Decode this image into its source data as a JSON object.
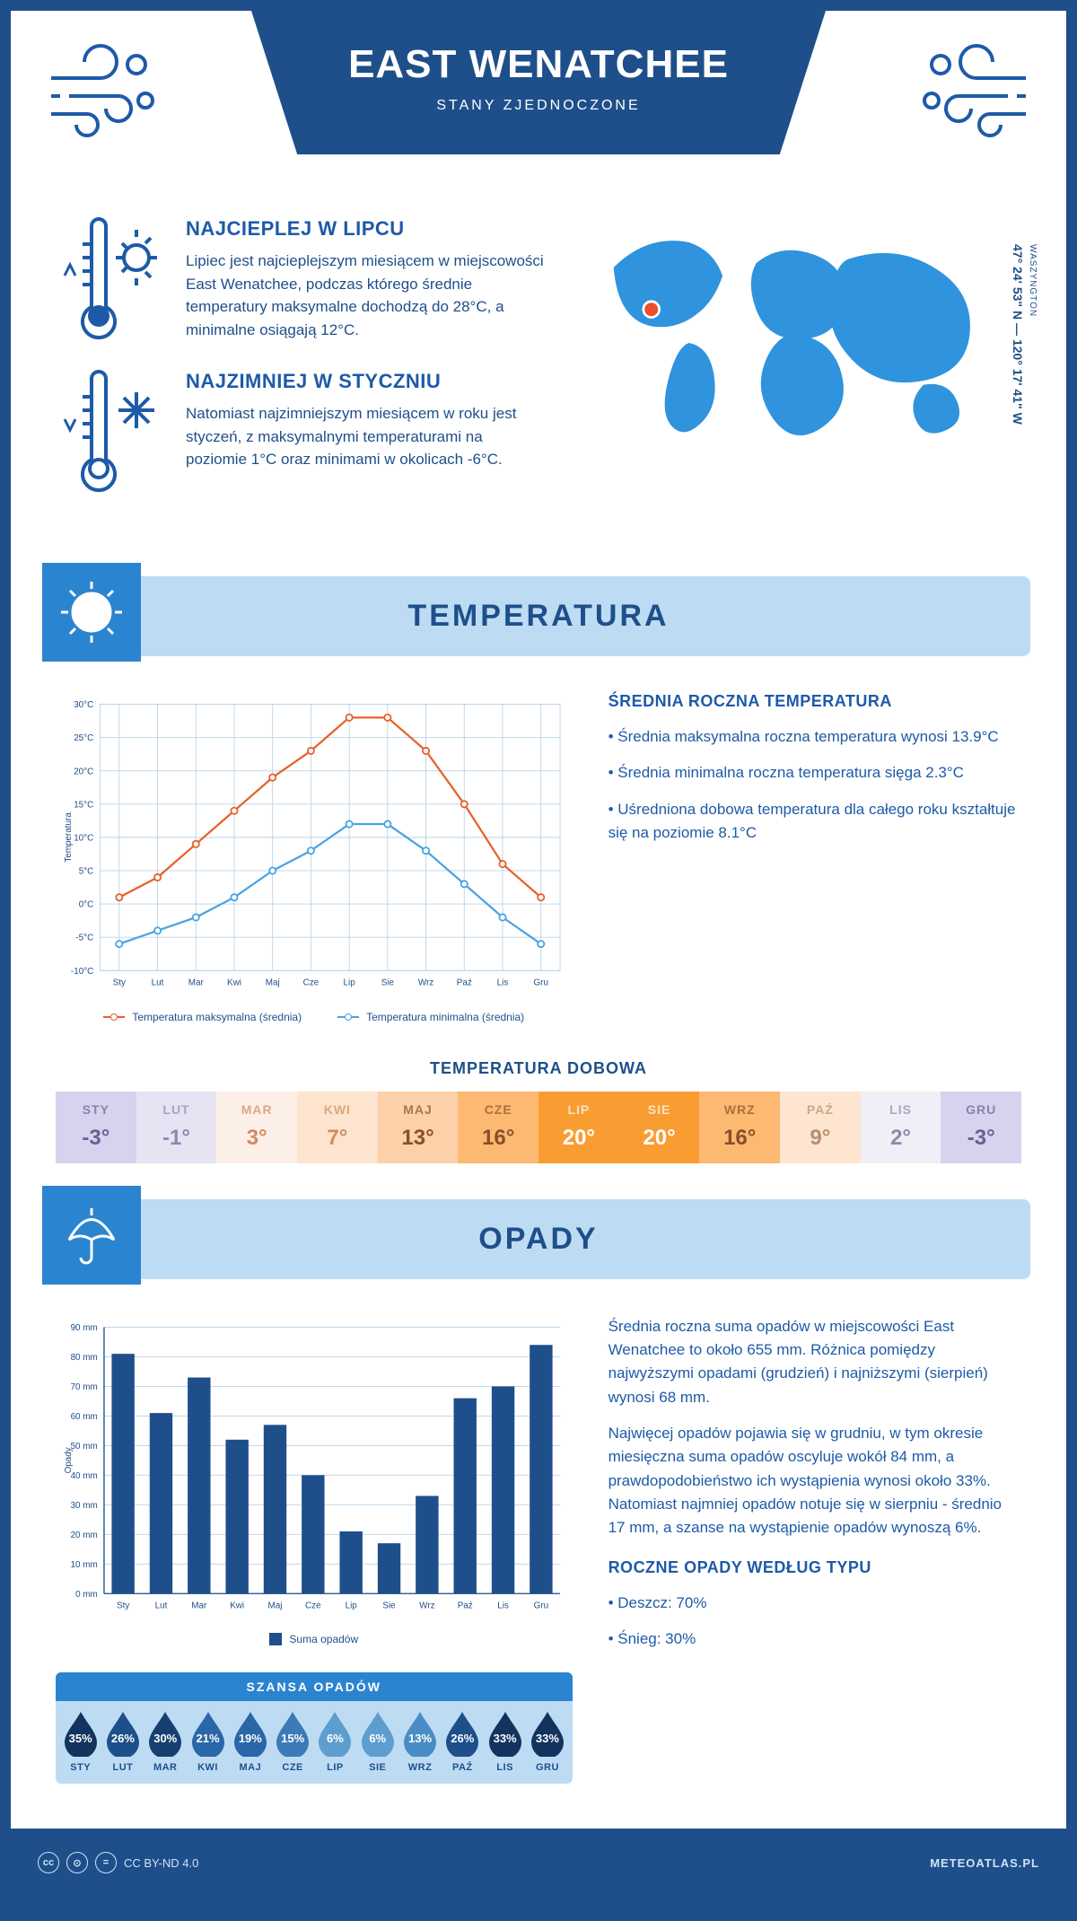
{
  "header": {
    "title": "EAST WENATCHEE",
    "subtitle": "STANY ZJEDNOCZONE",
    "coords": "47° 24' 53\" N — 120° 17' 41\" W",
    "region_label": "WASZYNGTON"
  },
  "facts": {
    "warm": {
      "title": "NAJCIEPLEJ W LIPCU",
      "body": "Lipiec jest najcieplejszym miesiącem w miejscowości East Wenatchee, podczas którego średnie temperatury maksymalne dochodzą do 28°C, a minimalne osiągają 12°C."
    },
    "cold": {
      "title": "NAJZIMNIEJ W STYCZNIU",
      "body": "Natomiast najzimniejszym miesiącem w roku jest styczeń, z maksymalnymi temperaturami na poziomie 1°C oraz minimami w okolicach -6°C."
    }
  },
  "months_short": [
    "Sty",
    "Lut",
    "Mar",
    "Kwi",
    "Maj",
    "Cze",
    "Lip",
    "Sie",
    "Wrz",
    "Paź",
    "Lis",
    "Gru"
  ],
  "months_upper": [
    "STY",
    "LUT",
    "MAR",
    "KWI",
    "MAJ",
    "CZE",
    "LIP",
    "SIE",
    "WRZ",
    "PAŹ",
    "LIS",
    "GRU"
  ],
  "temperature_section": {
    "heading": "TEMPERATURA",
    "chart": {
      "y_label": "Temperatura",
      "ylim": [
        -10,
        30
      ],
      "ytick_step": 5,
      "ytick_suffix": "°C",
      "max_series": {
        "label": "Temperatura maksymalna (średnia)",
        "color": "#e9602b",
        "values": [
          1,
          4,
          9,
          14,
          19,
          23,
          28,
          28,
          23,
          15,
          6,
          1
        ]
      },
      "min_series": {
        "label": "Temperatura minimalna (średnia)",
        "color": "#4aa3e0",
        "values": [
          -6,
          -4,
          -2,
          1,
          5,
          8,
          12,
          12,
          8,
          3,
          -2,
          -6
        ]
      },
      "grid_color": "#b8d4ea"
    },
    "annual": {
      "title": "ŚREDNIA ROCZNA TEMPERATURA",
      "bullets": [
        "Średnia maksymalna roczna temperatura wynosi 13.9°C",
        "Średnia minimalna roczna temperatura sięga 2.3°C",
        "Uśredniona dobowa temperatura dla całego roku kształtuje się na poziomie 8.1°C"
      ]
    },
    "daily": {
      "title": "TEMPERATURA DOBOWA",
      "values": [
        "-3°",
        "-1°",
        "3°",
        "7°",
        "13°",
        "16°",
        "20°",
        "20°",
        "16°",
        "9°",
        "2°",
        "-3°"
      ],
      "bg_colors": [
        "#d7d2ee",
        "#e7e3f3",
        "#fcefe7",
        "#fde4cf",
        "#fcd0a8",
        "#fdb871",
        "#f99d32",
        "#f99d32",
        "#fdb971",
        "#fde5d0",
        "#f1eef7",
        "#d7d2ee"
      ],
      "text_colors": [
        "#6a6090",
        "#8f87ad",
        "#d08b5c",
        "#d08b5c",
        "#8a4f28",
        "#8a4f28",
        "#ffffff",
        "#ffffff",
        "#8a4f28",
        "#b88e6e",
        "#8f87ad",
        "#6a6090"
      ]
    }
  },
  "precipitation_section": {
    "heading": "OPADY",
    "chart": {
      "y_label": "Opady",
      "ylim": [
        0,
        90
      ],
      "ytick_step": 10,
      "ytick_suffix": " mm",
      "values": [
        81,
        61,
        73,
        52,
        57,
        40,
        21,
        17,
        33,
        66,
        70,
        84
      ],
      "bar_color": "#1e4f8a",
      "legend_label": "Suma opadów",
      "grid_color": "#b8d4ea"
    },
    "paragraphs": [
      "Średnia roczna suma opadów w miejscowości East Wenatchee to około 655 mm. Różnica pomiędzy najwyższymi opadami (grudzień) i najniższymi (sierpień) wynosi 68 mm.",
      "Najwięcej opadów pojawia się w grudniu, w tym okresie miesięczna suma opadów oscyluje wokół 84 mm, a prawdopodobieństwo ich wystąpienia wynosi około 33%. Natomiast najmniej opadów notuje się w sierpniu - średnio 17 mm, a szanse na wystąpienie opadów wynoszą 6%."
    ],
    "chance": {
      "title": "SZANSA OPADÓW",
      "values": [
        "35%",
        "26%",
        "30%",
        "21%",
        "19%",
        "15%",
        "6%",
        "6%",
        "13%",
        "26%",
        "33%",
        "33%"
      ],
      "drop_colors": [
        "#12335e",
        "#1d4f8a",
        "#173f70",
        "#2a66a8",
        "#2a66a8",
        "#3c7ab8",
        "#5e9ecf",
        "#5e9ecf",
        "#4a8cc5",
        "#1d4f8a",
        "#12335e",
        "#12335e"
      ]
    },
    "by_type": {
      "title": "ROCZNE OPADY WEDŁUG TYPU",
      "items": [
        "Deszcz: 70%",
        "Śnieg: 30%"
      ]
    }
  },
  "footer": {
    "license": "CC BY-ND 4.0",
    "site": "METEOATLAS.PL"
  },
  "colors": {
    "brand": "#1e4f8a",
    "light_blue": "#bddcf4",
    "mid_blue": "#2b84d0",
    "map_blue": "#2f93de",
    "marker": "#ef4e2b"
  }
}
